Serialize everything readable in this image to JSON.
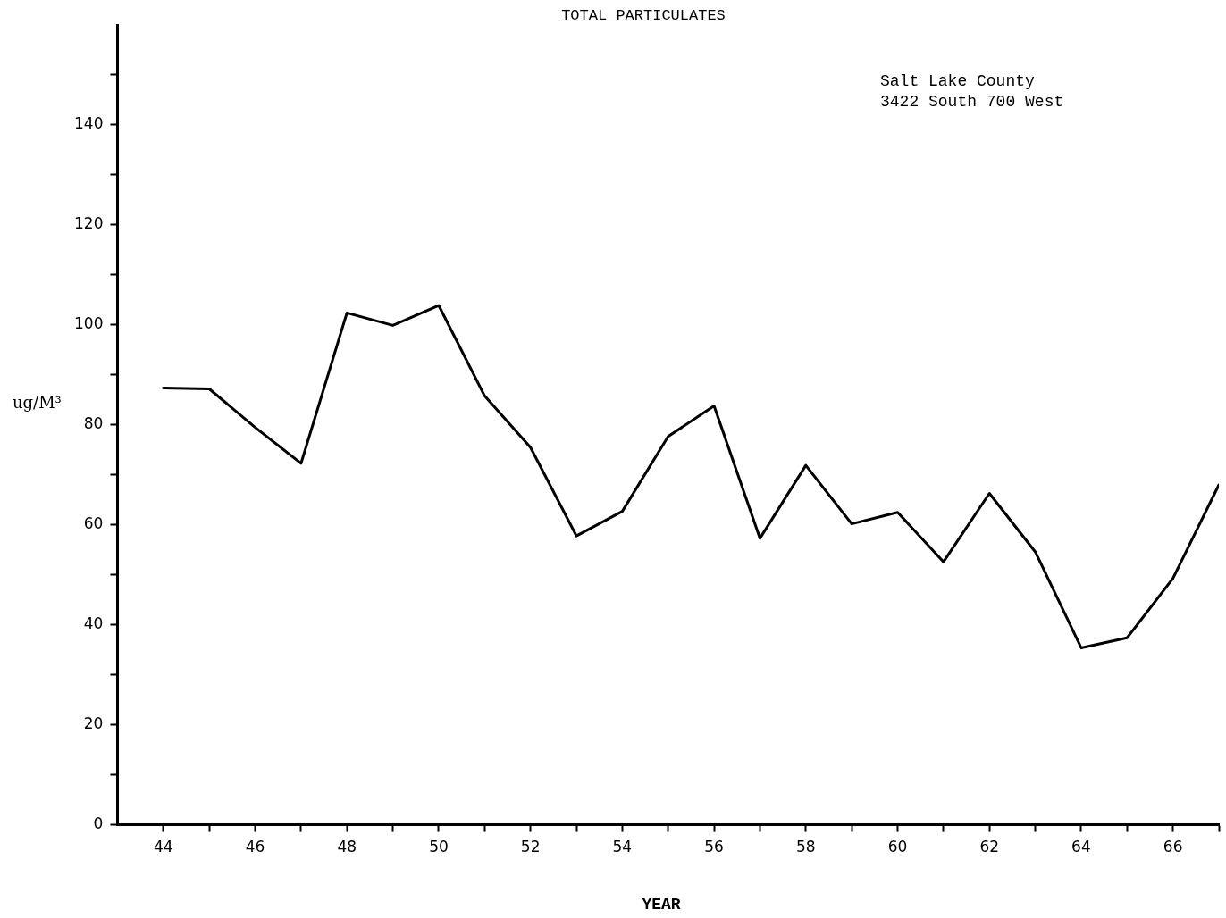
{
  "chart_data": {
    "type": "line",
    "title": "TOTAL PARTICULATES",
    "xlabel": "YEAR",
    "ylabel": "ug/M³",
    "annotations": [
      "Salt Lake County\n3422 South 700 West"
    ],
    "x": [
      44,
      45,
      46,
      47,
      48,
      49,
      50,
      51,
      52,
      53,
      54,
      55,
      56,
      57,
      58,
      59,
      60,
      61,
      62,
      63,
      64,
      65,
      66,
      67
    ],
    "values": [
      87.4,
      87.2,
      79.5,
      72.3,
      102.4,
      99.9,
      103.9,
      85.8,
      75.5,
      57.8,
      62.7,
      77.7,
      83.8,
      57.3,
      71.9,
      60.2,
      62.5,
      52.6,
      66.3,
      54.6,
      35.4,
      37.4,
      49.3,
      68
    ],
    "color": "#000000",
    "marker": "none",
    "line_style": "solid",
    "grid": false,
    "legend": false,
    "xlim": [
      43,
      67
    ],
    "xticks": [
      44,
      {
        "value": 45,
        "label": null
      },
      46,
      {
        "value": 47,
        "label": null
      },
      48,
      {
        "value": 49,
        "label": null
      },
      50,
      {
        "value": 51,
        "label": null
      },
      52,
      {
        "value": 53,
        "label": null
      },
      54,
      {
        "value": 55,
        "label": null
      },
      56,
      {
        "value": 57,
        "label": null
      },
      58,
      {
        "value": 59,
        "label": null
      },
      60,
      {
        "value": 61,
        "label": null
      },
      62,
      {
        "value": 63,
        "label": null
      },
      64,
      {
        "value": 65,
        "label": null
      },
      66,
      {
        "value": 67,
        "label": null
      }
    ],
    "ylim": [
      0,
      160
    ],
    "yticks": [
      0,
      {
        "value": 10,
        "label": null
      },
      20,
      {
        "value": 30,
        "label": null
      },
      40,
      {
        "value": 50,
        "label": null
      },
      60,
      {
        "value": 70,
        "label": null
      },
      80,
      {
        "value": 90,
        "label": null
      },
      100,
      {
        "value": 110,
        "label": null
      },
      120,
      {
        "value": 130,
        "label": null
      },
      140,
      {
        "value": 150,
        "label": null
      }
    ]
  }
}
